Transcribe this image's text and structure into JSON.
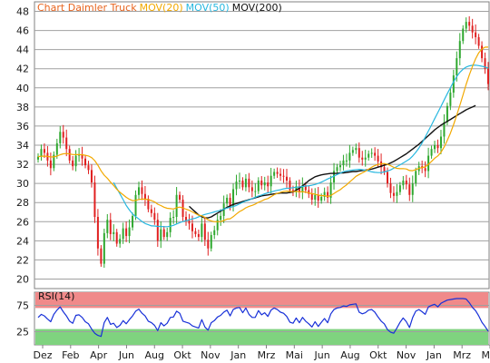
{
  "chart_data": [
    {
      "type": "candlestick",
      "title_parts": [
        {
          "text": "Chart Daimler Truck",
          "color": "#e8641e"
        },
        {
          "text": "MOV(20)",
          "color": "#f2a900"
        },
        {
          "text": "MOV(50)",
          "color": "#28b8e0"
        },
        {
          "text": "MOV(200)",
          "color": "#111111"
        }
      ],
      "ylim": [
        19,
        49
      ],
      "y_ticks": [
        20,
        22,
        24,
        26,
        28,
        30,
        32,
        34,
        36,
        38,
        40,
        42,
        44,
        46,
        48
      ],
      "x_ticks": [
        "Dez",
        "Feb",
        "Apr",
        "Jun",
        "Aug",
        "Okt",
        "Nov",
        "Jan",
        "Mrz",
        "Mai",
        "Jun",
        "Aug",
        "Okt",
        "Nov",
        "Jan",
        "Mrz",
        "M"
      ],
      "colors": {
        "up": "#2fa82f",
        "down": "#e02020",
        "mov20": "#f2a900",
        "mov50": "#28b8e0",
        "mov200": "#111111",
        "grid": "#a0a0a0",
        "frame": "#808080"
      },
      "close": [
        32.8,
        33.6,
        33.2,
        32.4,
        31.6,
        33.0,
        34.2,
        35.4,
        34.8,
        33.6,
        32.4,
        31.8,
        32.9,
        33.0,
        32.6,
        31.9,
        31.4,
        30.1,
        26.5,
        23.2,
        21.6,
        24.8,
        26.2,
        24.7,
        24.9,
        23.7,
        24.2,
        25.3,
        24.5,
        25.4,
        26.6,
        28.8,
        29.6,
        28.9,
        28.4,
        27.3,
        26.9,
        26.2,
        24.0,
        25.2,
        24.4,
        24.9,
        26.4,
        26.5,
        28.8,
        28.3,
        26.5,
        26.1,
        25.8,
        25.0,
        24.7,
        24.4,
        25.8,
        24.1,
        23.2,
        24.6,
        25.1,
        26.2,
        26.6,
        27.9,
        28.5,
        27.6,
        29.4,
        30.2,
        30.3,
        29.6,
        30.5,
        29.6,
        29.2,
        29.2,
        30.3,
        29.8,
        30.1,
        29.7,
        30.8,
        31.2,
        31.0,
        30.8,
        30.7,
        30.3,
        29.3,
        29.1,
        29.7,
        29.1,
        29.8,
        29.3,
        28.9,
        28.3,
        28.8,
        28.2,
        28.6,
        29.1,
        28.5,
        30.1,
        31.3,
        31.7,
        31.9,
        32.4,
        32.4,
        33.2,
        33.5,
        33.7,
        32.7,
        32.5,
        32.7,
        33.1,
        33.2,
        32.9,
        32.3,
        31.7,
        31.2,
        30.0,
        29.0,
        28.7,
        29.1,
        29.8,
        30.3,
        29.9,
        28.8,
        30.0,
        31.3,
        31.8,
        31.6,
        31.3,
        32.9,
        33.6,
        34.0,
        33.7,
        34.9,
        36.4,
        38.1,
        39.5,
        41.3,
        43.1,
        44.9,
        46.2,
        46.9,
        46.5,
        45.8,
        45.3,
        44.4,
        43.1,
        42.0,
        40.4
      ],
      "mov20": [
        32.8,
        32.84,
        32.86,
        32.83,
        32.77,
        32.78,
        32.86,
        33.0,
        33.1,
        33.13,
        33.09,
        33.02,
        33.01,
        33.01,
        33.0,
        32.95,
        32.87,
        32.7,
        32.39,
        31.9,
        31.31,
        30.87,
        30.54,
        30.14,
        29.79,
        29.39,
        29.07,
        28.82,
        28.55,
        28.34,
        28.2,
        28.23,
        28.32,
        28.36,
        28.36,
        28.3,
        28.21,
        28.08,
        27.83,
        27.69,
        27.52,
        27.4,
        27.36,
        27.33,
        27.46,
        27.53,
        27.43,
        27.31,
        27.19,
        27.02,
        26.85,
        26.68,
        26.62,
        26.43,
        26.2,
        26.08,
        26.0,
        26.0,
        26.01,
        26.12,
        26.27,
        26.3,
        26.52,
        26.8,
        27.06,
        27.23,
        27.45,
        27.6,
        27.71,
        27.84,
        28.03,
        28.16,
        28.32,
        28.42,
        28.62,
        28.82,
        28.96,
        29.07,
        29.16,
        29.2,
        29.17,
        29.14,
        29.17,
        29.11,
        29.13,
        29.09,
        29.02,
        28.92,
        28.88,
        28.78,
        28.72,
        28.72,
        28.64,
        28.74,
        28.95,
        29.16,
        29.35,
        29.61,
        29.85,
        30.16,
        30.45,
        30.74,
        30.93,
        31.1,
        31.28,
        31.49,
        31.7,
        31.87,
        31.98,
        32.05,
        32.08,
        32.0,
        31.85,
        31.68,
        31.58,
        31.54,
        31.55,
        31.51,
        31.35,
        31.33,
        31.45,
        31.57,
        31.66,
        31.73,
        32.0,
        32.31,
        32.63,
        32.88,
        33.26,
        33.8,
        34.49,
        35.26,
        36.14,
        37.12,
        38.18,
        39.27,
        40.36,
        41.35,
        42.24,
        43.03,
        43.66,
        44.06,
        44.25,
        44.26
      ],
      "mov50": [
        null,
        null,
        null,
        null,
        null,
        null,
        null,
        null,
        null,
        null,
        null,
        null,
        null,
        null,
        null,
        null,
        null,
        null,
        null,
        null,
        null,
        null,
        null,
        null,
        30.1,
        29.5,
        28.9,
        28.3,
        27.7,
        27.22,
        26.8,
        26.54,
        26.28,
        26.02,
        25.81,
        25.68,
        25.56,
        25.55,
        25.5,
        25.5,
        25.47,
        25.47,
        25.52,
        25.62,
        25.76,
        25.9,
        26.02,
        26.1,
        26.2,
        26.29,
        26.37,
        26.51,
        26.65,
        26.76,
        26.84,
        26.92,
        27.02,
        27.11,
        27.18,
        27.31,
        27.42,
        27.5,
        27.59,
        27.7,
        27.87,
        28.02,
        28.17,
        28.26,
        28.42,
        28.55,
        28.69,
        28.79,
        28.91,
        29.02,
        29.09,
        29.2,
        29.28,
        29.34,
        29.43,
        29.49,
        29.51,
        29.56,
        29.6,
        29.63,
        29.68,
        29.73,
        29.76,
        29.81,
        29.89,
        30.0,
        30.14,
        30.3,
        30.47,
        30.61,
        30.76,
        30.93,
        31.08,
        31.23,
        31.3,
        31.36,
        31.4,
        31.44,
        31.47,
        31.44,
        31.38,
        31.3,
        31.21,
        31.16,
        31.13,
        31.14,
        31.2,
        31.29,
        31.42,
        31.59,
        31.77,
        31.95,
        32.14,
        32.34,
        32.55,
        32.87,
        33.25,
        33.71,
        34.24,
        34.84,
        35.48,
        36.13,
        36.77,
        37.42,
        38.06,
        38.72,
        39.38,
        40.02,
        40.63,
        41.18,
        41.62,
        41.95,
        42.17,
        42.3,
        42.36,
        42.37,
        42.33,
        42.26,
        42.18,
        42.08
      ],
      "mov200": [
        null,
        null,
        null,
        null,
        null,
        null,
        null,
        null,
        null,
        null,
        null,
        null,
        null,
        null,
        null,
        null,
        null,
        null,
        null,
        null,
        null,
        null,
        null,
        null,
        null,
        null,
        null,
        null,
        null,
        null,
        null,
        null,
        null,
        null,
        null,
        null,
        null,
        null,
        null,
        null,
        null,
        null,
        null,
        null,
        null,
        null,
        null,
        null,
        27.6,
        27.3,
        27.0,
        26.7,
        26.5,
        26.4,
        26.4,
        26.5,
        26.7,
        26.9,
        27.1,
        27.3,
        27.5,
        27.65,
        27.8,
        27.9,
        28.0,
        28.1,
        28.2,
        28.3,
        28.4,
        28.5,
        28.6,
        28.7,
        28.75,
        28.8,
        28.85,
        28.9,
        28.95,
        29.0,
        29.0,
        29.0,
        29.05,
        29.1,
        29.3,
        29.5,
        29.75,
        30.0,
        30.3,
        30.5,
        30.7,
        30.8,
        30.9,
        30.95,
        31.0,
        31.05,
        31.05,
        31.05,
        31.1,
        31.1,
        31.15,
        31.2,
        31.25,
        31.25,
        31.3,
        31.35,
        31.4,
        31.45,
        31.5,
        31.6,
        31.7,
        31.8,
        31.9,
        32.0,
        32.15,
        32.3,
        32.5,
        32.7,
        32.9,
        33.1,
        33.35,
        33.6,
        33.85,
        34.1,
        34.4,
        34.7,
        35.0,
        35.3,
        35.6,
        35.85,
        36.1,
        36.3,
        36.5,
        36.7,
        36.9,
        37.1,
        37.3,
        37.5,
        37.7,
        37.85,
        38.0,
        38.15
      ]
    },
    {
      "type": "line",
      "title": "RSI(14)",
      "ylim": [
        0,
        100
      ],
      "y_ticks": [
        25,
        75
      ],
      "bands": [
        {
          "from": 70,
          "to": 100,
          "color": "#f08a8a"
        },
        {
          "from": 0,
          "to": 30,
          "color": "#7fd37f"
        }
      ],
      "series": [
        {
          "color": "#1730d8",
          "values": [
            52,
            58,
            55,
            49,
            44,
            58,
            66,
            72,
            63,
            55,
            45,
            41,
            56,
            57,
            52,
            44,
            40,
            30,
            22,
            18,
            16,
            42,
            52,
            39,
            41,
            33,
            37,
            46,
            40,
            48,
            55,
            64,
            68,
            60,
            55,
            45,
            42,
            37,
            27,
            42,
            36,
            41,
            52,
            53,
            64,
            60,
            45,
            43,
            41,
            36,
            34,
            32,
            48,
            34,
            28,
            42,
            46,
            53,
            56,
            62,
            66,
            55,
            67,
            70,
            71,
            61,
            70,
            58,
            52,
            52,
            65,
            57,
            61,
            54,
            66,
            70,
            67,
            62,
            60,
            54,
            43,
            41,
            51,
            42,
            52,
            45,
            40,
            34,
            44,
            35,
            43,
            50,
            42,
            59,
            67,
            70,
            71,
            74,
            73,
            76,
            77,
            78,
            62,
            59,
            61,
            66,
            67,
            62,
            53,
            45,
            40,
            29,
            24,
            22,
            32,
            43,
            51,
            44,
            33,
            52,
            64,
            67,
            63,
            58,
            72,
            75,
            77,
            72,
            79,
            82,
            85,
            86,
            87,
            88,
            88,
            88,
            87,
            80,
            71,
            65,
            55,
            43,
            35,
            26
          ]
        }
      ],
      "x_ticks": [
        "Dez",
        "Feb",
        "Apr",
        "Jun",
        "Aug",
        "Okt",
        "Nov",
        "Jan",
        "Mrz",
        "Mai",
        "Jun",
        "Aug",
        "Okt",
        "Nov",
        "Jan",
        "Mrz",
        "M"
      ]
    }
  ]
}
